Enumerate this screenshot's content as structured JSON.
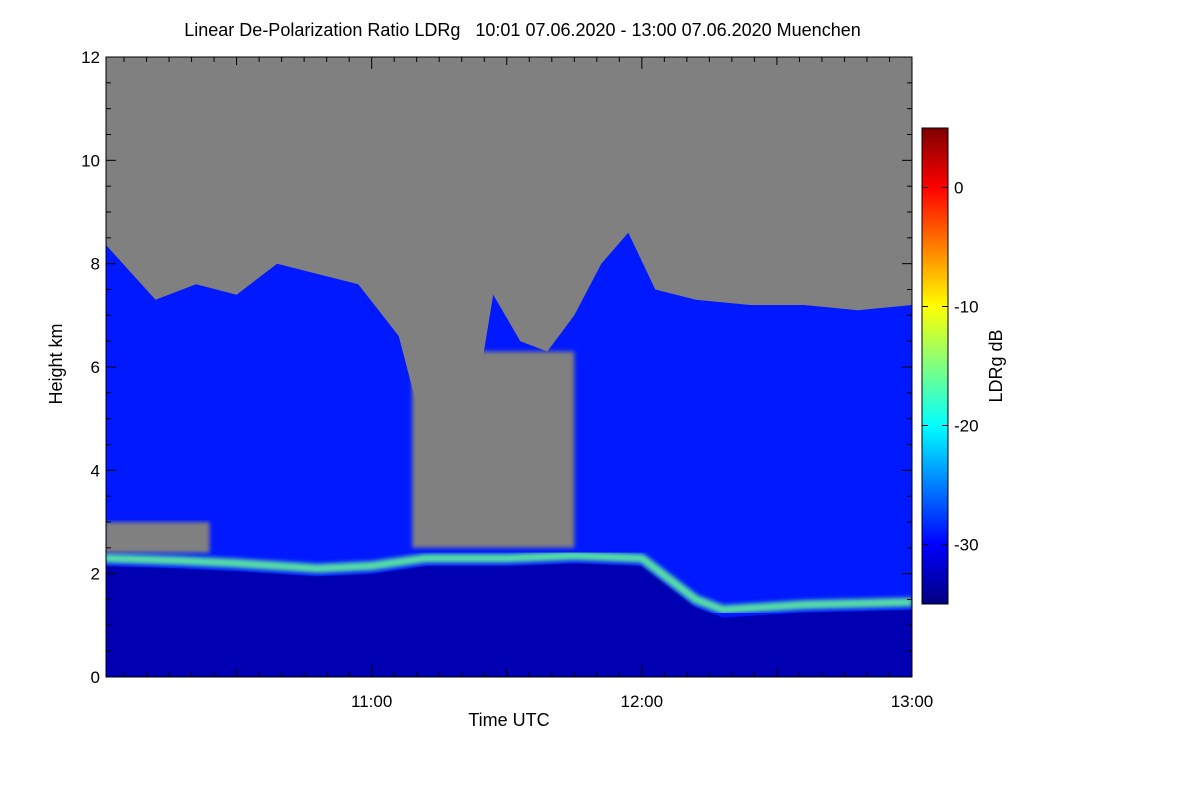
{
  "chart_data": {
    "type": "heatmap",
    "title": "Linear De-Polarization Ratio LDRg   10:01 07.06.2020 - 13:00 07.06.2020 Muenchen",
    "xlabel": "Time UTC",
    "ylabel": "Height km",
    "colorbar_label": "LDRg dB",
    "x_range": [
      "10:01",
      "13:00"
    ],
    "x_ticks": [
      "11:00",
      "12:00",
      "13:00"
    ],
    "y_range": [
      0,
      12
    ],
    "y_ticks": [
      "0",
      "2",
      "4",
      "6",
      "8",
      "10",
      "12"
    ],
    "colorbar_range": [
      -35,
      5
    ],
    "colorbar_ticks": [
      "0",
      "-10",
      "-20",
      "-30"
    ],
    "no_signal_color": "#808080",
    "colormap": [
      "#00007f",
      "#0000ff",
      "#007fff",
      "#00ffff",
      "#7fff7f",
      "#ffff00",
      "#ff7f00",
      "#ff0000",
      "#7f0000"
    ],
    "features": {
      "cloud_top_km": [
        [
          10.01,
          8.4
        ],
        [
          10.2,
          7.3
        ],
        [
          10.35,
          7.6
        ],
        [
          10.5,
          7.4
        ],
        [
          10.65,
          8.0
        ],
        [
          10.8,
          7.8
        ],
        [
          10.95,
          7.6
        ],
        [
          11.1,
          6.6
        ],
        [
          11.18,
          5.0
        ],
        [
          11.25,
          4.0
        ],
        [
          11.35,
          4.2
        ],
        [
          11.45,
          7.4
        ],
        [
          11.55,
          6.5
        ],
        [
          11.65,
          6.3
        ],
        [
          11.75,
          7.0
        ],
        [
          11.85,
          8.0
        ],
        [
          11.95,
          8.6
        ],
        [
          12.05,
          7.5
        ],
        [
          12.2,
          7.3
        ],
        [
          12.4,
          7.2
        ],
        [
          12.6,
          7.2
        ],
        [
          12.8,
          7.1
        ],
        [
          13.0,
          7.2
        ]
      ],
      "gap_regions": [
        {
          "t_start": 11.15,
          "t_end": 11.75,
          "h_bottom": 2.5,
          "h_top": 6.3
        },
        {
          "t_start": 10.01,
          "t_end": 10.4,
          "h_bottom": 2.4,
          "h_top": 3.0
        }
      ],
      "melting_layer": [
        [
          10.01,
          2.3
        ],
        [
          10.3,
          2.25
        ],
        [
          10.5,
          2.2
        ],
        [
          10.8,
          2.1
        ],
        [
          11.0,
          2.15
        ],
        [
          11.2,
          2.3
        ],
        [
          11.5,
          2.3
        ],
        [
          11.75,
          2.35
        ],
        [
          12.0,
          2.3
        ],
        [
          12.05,
          2.1
        ],
        [
          12.2,
          1.5
        ],
        [
          12.3,
          1.3
        ],
        [
          12.6,
          1.4
        ],
        [
          13.0,
          1.45
        ]
      ],
      "base_ldr_db": -33,
      "cloud_ldr_db": -29,
      "melting_layer_ldr_db": -16
    }
  }
}
